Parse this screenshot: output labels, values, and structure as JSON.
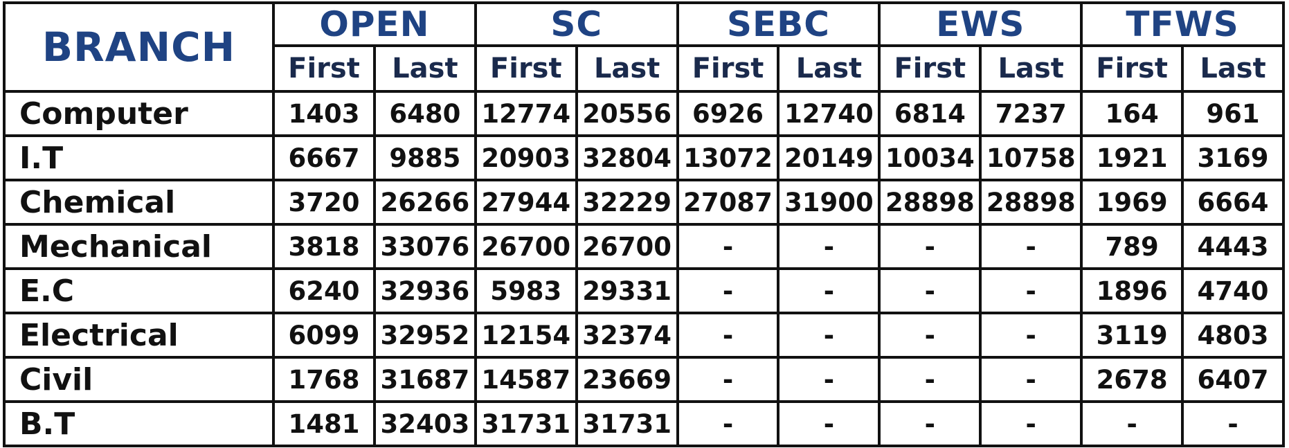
{
  "table": {
    "branch_header": "BRANCH",
    "categories": [
      "OPEN",
      "SC",
      "SEBC",
      "EWS",
      "TFWS"
    ],
    "subheaders": [
      "First",
      "Last"
    ],
    "rows": [
      {
        "branch": "Computer",
        "values": [
          "1403",
          "6480",
          "12774",
          "20556",
          "6926",
          "12740",
          "6814",
          "7237",
          "164",
          "961"
        ]
      },
      {
        "branch": "I.T",
        "values": [
          "6667",
          "9885",
          "20903",
          "32804",
          "13072",
          "20149",
          "10034",
          "10758",
          "1921",
          "3169"
        ]
      },
      {
        "branch": "Chemical",
        "values": [
          "3720",
          "26266",
          "27944",
          "32229",
          "27087",
          "31900",
          "28898",
          "28898",
          "1969",
          "6664"
        ]
      },
      {
        "branch": "Mechanical",
        "values": [
          "3818",
          "33076",
          "26700",
          "26700",
          "-",
          "-",
          "-",
          "-",
          "789",
          "4443"
        ]
      },
      {
        "branch": "E.C",
        "values": [
          "6240",
          "32936",
          "5983",
          "29331",
          "-",
          "-",
          "-",
          "-",
          "1896",
          "4740"
        ]
      },
      {
        "branch": "Electrical",
        "values": [
          "6099",
          "32952",
          "12154",
          "32374",
          "-",
          "-",
          "-",
          "-",
          "3119",
          "4803"
        ]
      },
      {
        "branch": "Civil",
        "values": [
          "1768",
          "31687",
          "14587",
          "23669",
          "-",
          "-",
          "-",
          "-",
          "2678",
          "6407"
        ]
      },
      {
        "branch": "B.T",
        "values": [
          "1481",
          "32403",
          "31731",
          "31731",
          "-",
          "-",
          "-",
          "-",
          "-",
          "-"
        ]
      }
    ]
  }
}
